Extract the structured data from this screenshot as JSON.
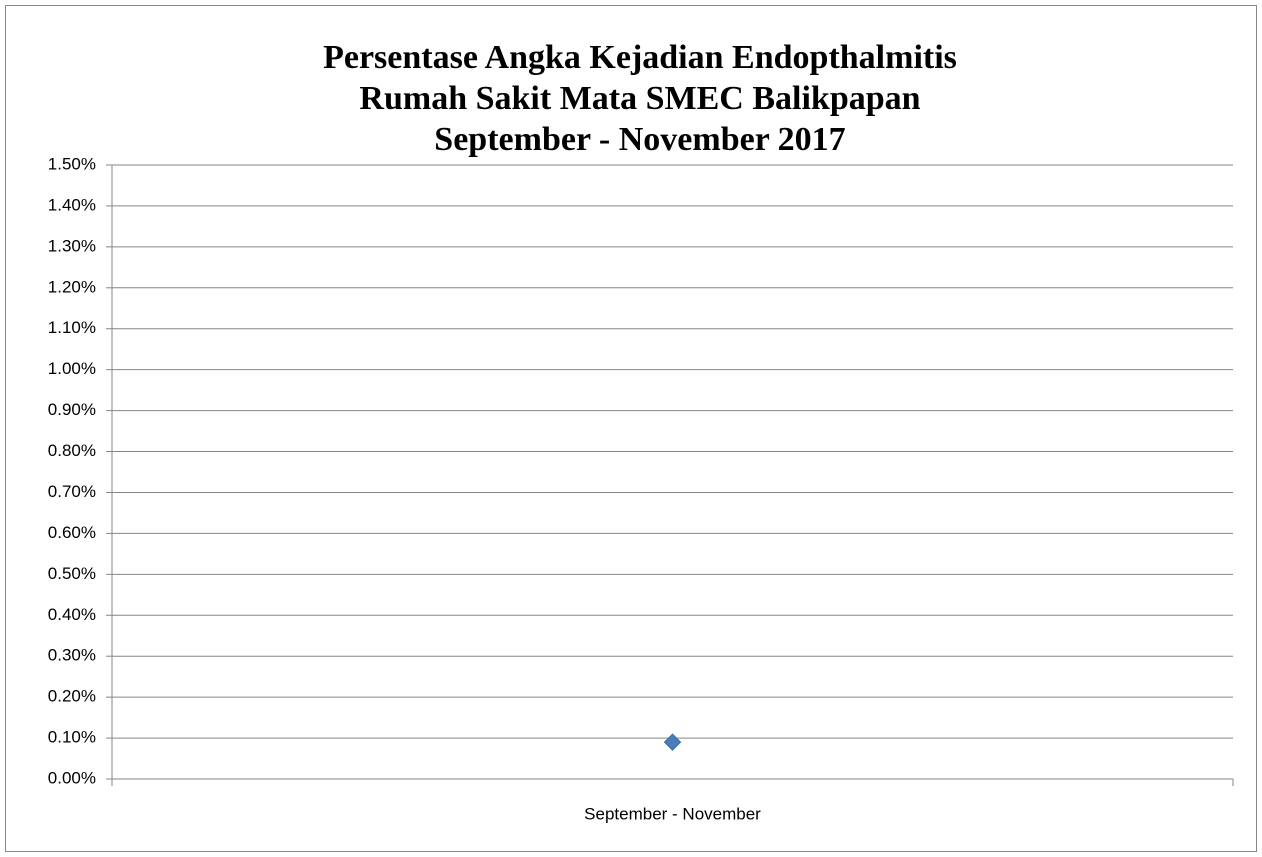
{
  "chart_data": {
    "type": "line",
    "title": [
      "Persentase Angka Kejadian Endopthalmitis",
      "Rumah Sakit Mata SMEC Balikpapan",
      "September - November 2017"
    ],
    "categories": [
      "September - November"
    ],
    "series": [
      {
        "color": "#4a7ebb",
        "values": [
          0.09
        ]
      }
    ],
    "ylim": [
      0,
      1.5
    ],
    "yticks": [
      {
        "value": 0,
        "label": "0.00%"
      },
      {
        "value": 0.1,
        "label": "0.10%"
      },
      {
        "value": 0.2,
        "label": "0.20%"
      },
      {
        "value": 0.3,
        "label": "0.30%"
      },
      {
        "value": 0.4,
        "label": "0.40%"
      },
      {
        "value": 0.5,
        "label": "0.50%"
      },
      {
        "value": 0.6,
        "label": "0.60%"
      },
      {
        "value": 0.7,
        "label": "0.70%"
      },
      {
        "value": 0.8,
        "label": "0.80%"
      },
      {
        "value": 0.9,
        "label": "0.90%"
      },
      {
        "value": 1.0,
        "label": "1.00%"
      },
      {
        "value": 1.1,
        "label": "1.10%"
      },
      {
        "value": 1.2,
        "label": "1.20%"
      },
      {
        "value": 1.3,
        "label": "1.30%"
      },
      {
        "value": 1.4,
        "label": "1.40%"
      },
      {
        "value": 1.5,
        "label": "1.50%"
      }
    ],
    "grid": true,
    "marker": "diamond"
  }
}
